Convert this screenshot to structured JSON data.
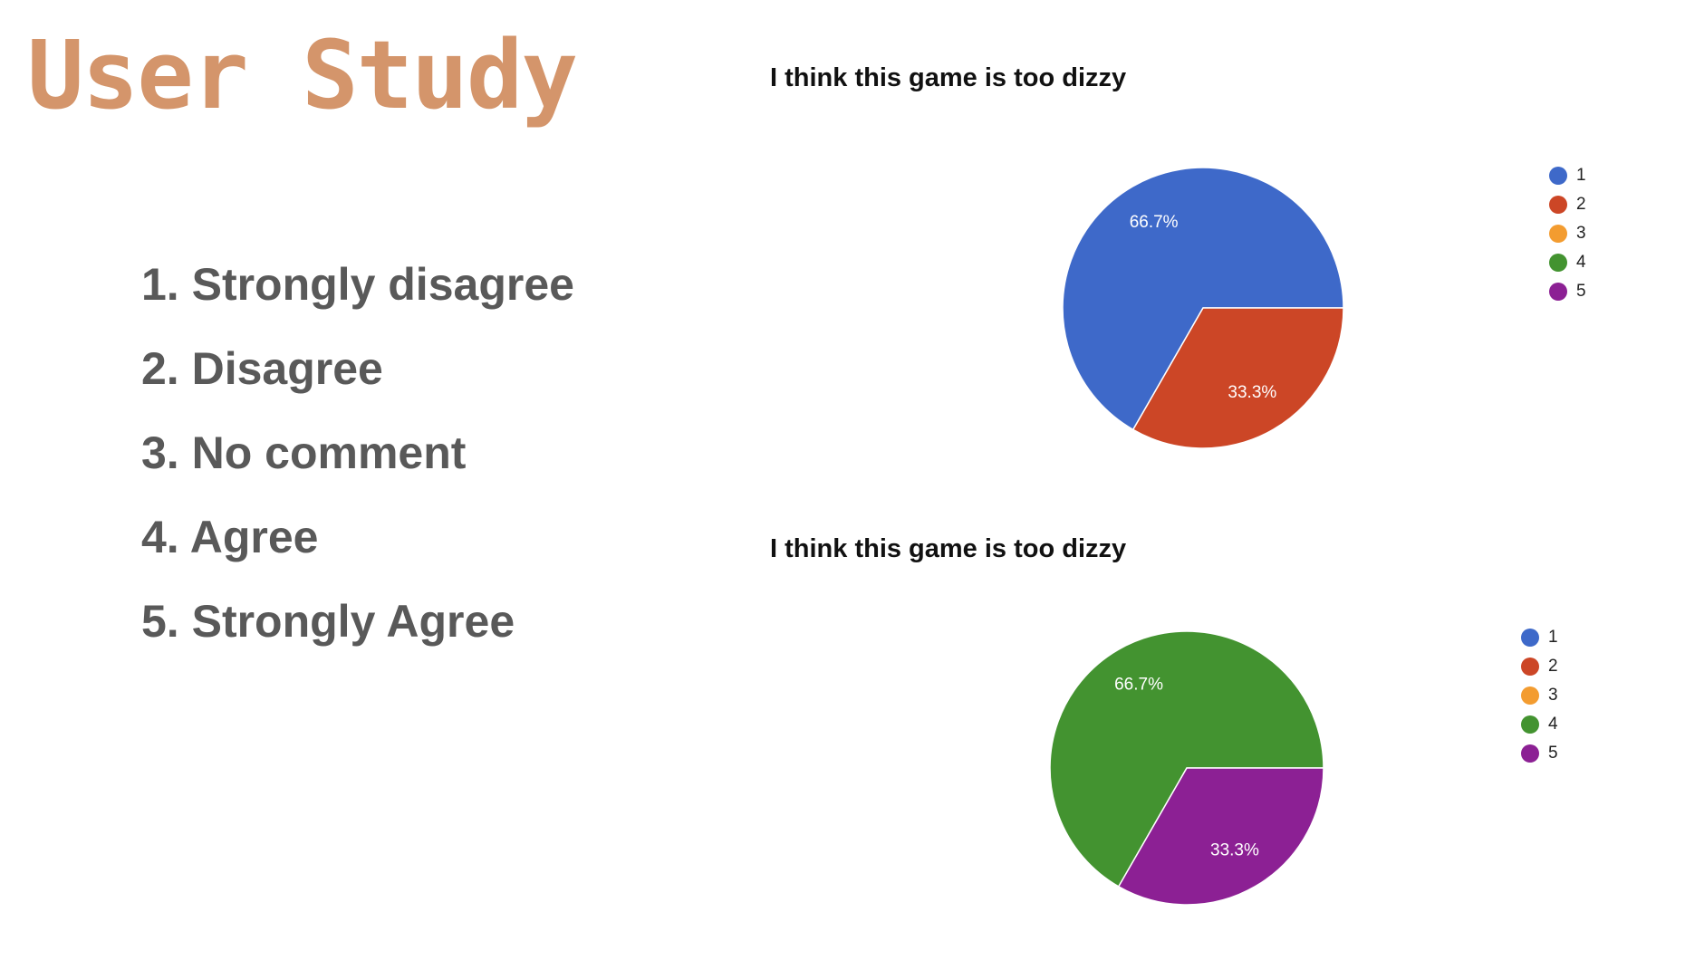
{
  "slide": {
    "title": "User Study",
    "scale_items": [
      "1. Strongly disagree",
      "2. Disagree",
      "3. No comment",
      "4. Agree",
      "5. Strongly Agree"
    ]
  },
  "colors": {
    "title": "#d4956b",
    "list_text": "#595959",
    "legend": [
      "#3e69c9",
      "#cc4626",
      "#f39c30",
      "#439330",
      "#8c2094"
    ]
  },
  "chart_data": [
    {
      "type": "pie",
      "title": "I think this game is too dizzy",
      "legend_placement": "right",
      "legend": [
        "1",
        "2",
        "3",
        "4",
        "5"
      ],
      "slices": [
        {
          "category": "1",
          "value": 66.7,
          "label": "66.7%",
          "color": "#3e69c9"
        },
        {
          "category": "2",
          "value": 33.3,
          "label": "33.3%",
          "color": "#cc4626"
        },
        {
          "category": "3",
          "value": 0,
          "label": "",
          "color": "#f39c30"
        },
        {
          "category": "4",
          "value": 0,
          "label": "",
          "color": "#439330"
        },
        {
          "category": "5",
          "value": 0,
          "label": "",
          "color": "#8c2094"
        }
      ]
    },
    {
      "type": "pie",
      "title": "I think this game is too dizzy",
      "legend_placement": "right",
      "legend": [
        "1",
        "2",
        "3",
        "4",
        "5"
      ],
      "slices": [
        {
          "category": "1",
          "value": 0,
          "label": "",
          "color": "#3e69c9"
        },
        {
          "category": "2",
          "value": 0,
          "label": "",
          "color": "#cc4626"
        },
        {
          "category": "3",
          "value": 0,
          "label": "",
          "color": "#f39c30"
        },
        {
          "category": "4",
          "value": 66.7,
          "label": "66.7%",
          "color": "#439330"
        },
        {
          "category": "5",
          "value": 33.3,
          "label": "33.3%",
          "color": "#8c2094"
        }
      ]
    }
  ]
}
